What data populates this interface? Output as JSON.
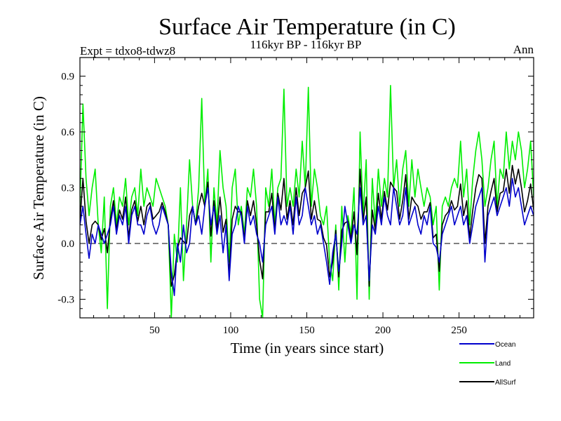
{
  "chart_data": {
    "type": "line",
    "title": "Surface Air Temperature (in C)",
    "subtitle": "116kyr BP - 116kyr BP",
    "left_header": "Expt = tdxo8-tdwz8",
    "right_header": "Ann",
    "xlabel": "Time (in years since start)",
    "ylabel": "Surface Air Temperature (in C)",
    "xlim": [
      1,
      299
    ],
    "ylim": [
      -0.4,
      1.0
    ],
    "xticks": [
      50,
      100,
      150,
      200,
      250
    ],
    "xtick_labels": [
      "50",
      "100",
      "150",
      "200",
      "250"
    ],
    "yticks": [
      -0.3,
      0.0,
      0.3,
      0.6,
      0.9
    ],
    "ytick_labels": [
      "-0.3",
      "0.0",
      "0.3",
      "0.6",
      "0.9"
    ],
    "zero_line": "dashed",
    "legend_position": "bottom-right, outside plot",
    "series": [
      {
        "name": "Land",
        "color": "#00ee00",
        "x": [
          1,
          3,
          5,
          7,
          9,
          11,
          13,
          15,
          17,
          19,
          21,
          23,
          25,
          27,
          29,
          31,
          33,
          35,
          37,
          39,
          41,
          43,
          45,
          47,
          49,
          51,
          53,
          55,
          57,
          59,
          61,
          63,
          65,
          67,
          69,
          71,
          73,
          75,
          77,
          79,
          81,
          83,
          85,
          87,
          89,
          91,
          93,
          95,
          97,
          99,
          101,
          103,
          105,
          107,
          109,
          111,
          113,
          115,
          117,
          119,
          121,
          123,
          125,
          127,
          129,
          131,
          133,
          135,
          137,
          139,
          141,
          143,
          145,
          147,
          149,
          151,
          153,
          155,
          157,
          159,
          161,
          163,
          165,
          167,
          169,
          171,
          173,
          175,
          177,
          179,
          181,
          183,
          185,
          187,
          189,
          191,
          193,
          195,
          197,
          199,
          201,
          203,
          205,
          207,
          209,
          211,
          213,
          215,
          217,
          219,
          221,
          223,
          225,
          227,
          229,
          231,
          233,
          235,
          237,
          239,
          241,
          243,
          245,
          247,
          249,
          251,
          253,
          255,
          257,
          259,
          261,
          263,
          265,
          267,
          269,
          271,
          273,
          275,
          277,
          279,
          281,
          283,
          285,
          287,
          289,
          291,
          293,
          295,
          297,
          299
        ],
        "values": [
          0.2,
          0.75,
          0.35,
          0.15,
          0.3,
          0.4,
          0.1,
          -0.05,
          0.25,
          -0.35,
          0.2,
          0.3,
          0.1,
          0.25,
          0.2,
          0.35,
          0.1,
          0.25,
          0.3,
          0.15,
          0.4,
          0.2,
          0.3,
          0.25,
          0.2,
          0.35,
          0.3,
          0.25,
          0.2,
          0.1,
          -0.4,
          0.05,
          -0.1,
          0.3,
          -0.2,
          0.1,
          0.45,
          0.2,
          0.1,
          0.3,
          0.78,
          0.2,
          0.4,
          -0.1,
          0.3,
          0.1,
          0.5,
          0.3,
          0.2,
          -0.1,
          0.3,
          0.4,
          0.1,
          0.2,
          0.05,
          0.3,
          0.25,
          0.4,
          0.2,
          -0.3,
          -0.4,
          0.3,
          0.2,
          0.4,
          0.1,
          0.3,
          0.35,
          0.83,
          0.2,
          0.3,
          0.2,
          0.4,
          0.25,
          0.55,
          0.3,
          0.84,
          0.2,
          0.4,
          0.3,
          0.15,
          0.1,
          0.2,
          -0.1,
          -0.2,
          0.1,
          -0.25,
          0.2,
          -0.1,
          0.15,
          0.05,
          0.3,
          -0.3,
          0.6,
          0.15,
          0.45,
          -0.3,
          0.35,
          0.1,
          0.4,
          0.2,
          0.35,
          0.25,
          0.85,
          0.3,
          0.45,
          0.2,
          0.4,
          0.5,
          0.2,
          0.45,
          0.25,
          0.4,
          0.3,
          0.2,
          0.3,
          0.25,
          0.1,
          0.2,
          -0.25,
          0.2,
          0.25,
          0.2,
          0.3,
          0.35,
          0.3,
          0.55,
          0.25,
          0.4,
          0.1,
          0.35,
          0.5,
          0.6,
          0.45,
          0.2,
          0.3,
          0.45,
          0.55,
          0.2,
          0.4,
          0.35,
          0.6,
          0.4,
          0.55,
          0.45,
          0.6,
          0.5,
          0.3,
          0.4,
          0.55,
          0.25
        ]
      },
      {
        "name": "Ocean",
        "color": "#0000cc",
        "x": [
          1,
          3,
          5,
          7,
          9,
          11,
          13,
          15,
          17,
          19,
          21,
          23,
          25,
          27,
          29,
          31,
          33,
          35,
          37,
          39,
          41,
          43,
          45,
          47,
          49,
          51,
          53,
          55,
          57,
          59,
          61,
          63,
          65,
          67,
          69,
          71,
          73,
          75,
          77,
          79,
          81,
          83,
          85,
          87,
          89,
          91,
          93,
          95,
          97,
          99,
          101,
          103,
          105,
          107,
          109,
          111,
          113,
          115,
          117,
          119,
          121,
          123,
          125,
          127,
          129,
          131,
          133,
          135,
          137,
          139,
          141,
          143,
          145,
          147,
          149,
          151,
          153,
          155,
          157,
          159,
          161,
          163,
          165,
          167,
          169,
          171,
          173,
          175,
          177,
          179,
          181,
          183,
          185,
          187,
          189,
          191,
          193,
          195,
          197,
          199,
          201,
          203,
          205,
          207,
          209,
          211,
          213,
          215,
          217,
          219,
          221,
          223,
          225,
          227,
          229,
          231,
          233,
          235,
          237,
          239,
          241,
          243,
          245,
          247,
          249,
          251,
          253,
          255,
          257,
          259,
          261,
          263,
          265,
          267,
          269,
          271,
          273,
          275,
          277,
          279,
          281,
          283,
          285,
          287,
          289,
          291,
          293,
          295,
          297,
          299
        ],
        "values": [
          0.1,
          0.2,
          0.05,
          -0.08,
          0.05,
          0.0,
          0.1,
          0.05,
          0.0,
          0.05,
          0.1,
          0.2,
          0.05,
          0.15,
          0.1,
          0.2,
          0.0,
          0.15,
          0.2,
          0.1,
          0.1,
          0.05,
          0.15,
          0.2,
          0.1,
          0.05,
          0.1,
          0.2,
          0.15,
          0.1,
          -0.15,
          -0.28,
          0.0,
          -0.1,
          0.1,
          -0.05,
          0.0,
          0.2,
          0.1,
          0.15,
          0.05,
          0.2,
          0.3,
          0.1,
          0.2,
          0.05,
          0.15,
          -0.05,
          0.1,
          -0.2,
          0.05,
          0.1,
          0.2,
          0.15,
          0.0,
          0.2,
          0.1,
          0.15,
          0.05,
          0.0,
          -0.1,
          0.1,
          0.15,
          0.2,
          0.05,
          0.25,
          0.1,
          0.15,
          0.1,
          0.2,
          0.05,
          0.25,
          0.1,
          0.15,
          0.3,
          0.2,
          0.1,
          0.15,
          0.05,
          0.1,
          0.0,
          -0.1,
          -0.22,
          -0.05,
          0.05,
          -0.15,
          0.0,
          0.2,
          0.1,
          0.0,
          0.1,
          0.05,
          0.3,
          0.1,
          0.15,
          -0.2,
          0.1,
          0.05,
          0.2,
          0.1,
          0.25,
          0.15,
          0.1,
          0.3,
          0.2,
          0.1,
          0.15,
          0.3,
          0.1,
          0.15,
          0.2,
          0.1,
          0.05,
          0.15,
          0.1,
          0.2,
          0.0,
          -0.02,
          -0.1,
          0.05,
          0.1,
          0.15,
          0.2,
          0.1,
          0.15,
          0.2,
          0.1,
          0.15,
          0.0,
          0.1,
          0.2,
          0.25,
          0.3,
          -0.1,
          0.15,
          0.2,
          0.25,
          0.15,
          0.2,
          0.25,
          0.3,
          0.2,
          0.35,
          0.25,
          0.3,
          0.2,
          0.1,
          0.15,
          0.2,
          0.15
        ]
      },
      {
        "name": "AllSurf",
        "color": "#000000",
        "x": [
          1,
          3,
          5,
          7,
          9,
          11,
          13,
          15,
          17,
          19,
          21,
          23,
          25,
          27,
          29,
          31,
          33,
          35,
          37,
          39,
          41,
          43,
          45,
          47,
          49,
          51,
          53,
          55,
          57,
          59,
          61,
          63,
          65,
          67,
          69,
          71,
          73,
          75,
          77,
          79,
          81,
          83,
          85,
          87,
          89,
          91,
          93,
          95,
          97,
          99,
          101,
          103,
          105,
          107,
          109,
          111,
          113,
          115,
          117,
          119,
          121,
          123,
          125,
          127,
          129,
          131,
          133,
          135,
          137,
          139,
          141,
          143,
          145,
          147,
          149,
          151,
          153,
          155,
          157,
          159,
          161,
          163,
          165,
          167,
          169,
          171,
          173,
          175,
          177,
          179,
          181,
          183,
          185,
          187,
          189,
          191,
          193,
          195,
          197,
          199,
          201,
          203,
          205,
          207,
          209,
          211,
          213,
          215,
          217,
          219,
          221,
          223,
          225,
          227,
          229,
          231,
          233,
          235,
          237,
          239,
          241,
          243,
          245,
          247,
          249,
          251,
          253,
          255,
          257,
          259,
          261,
          263,
          265,
          267,
          269,
          271,
          273,
          275,
          277,
          279,
          281,
          283,
          285,
          287,
          289,
          291,
          293,
          295,
          297,
          299
        ],
        "values": [
          0.12,
          0.35,
          0.12,
          0.0,
          0.1,
          0.12,
          0.1,
          0.02,
          0.08,
          -0.05,
          0.13,
          0.23,
          0.07,
          0.18,
          0.13,
          0.25,
          0.03,
          0.18,
          0.23,
          0.12,
          0.2,
          0.1,
          0.2,
          0.22,
          0.13,
          0.15,
          0.17,
          0.22,
          0.17,
          0.1,
          -0.23,
          -0.17,
          -0.03,
          0.03,
          0.01,
          0.0,
          0.15,
          0.2,
          0.1,
          0.2,
          0.27,
          0.2,
          0.33,
          0.04,
          0.23,
          0.07,
          0.25,
          0.06,
          0.13,
          -0.17,
          0.13,
          0.2,
          0.17,
          0.17,
          0.02,
          0.23,
          0.15,
          0.23,
          0.1,
          -0.09,
          -0.19,
          0.17,
          0.17,
          0.27,
          0.07,
          0.27,
          0.18,
          0.35,
          0.13,
          0.23,
          0.1,
          0.3,
          0.15,
          0.27,
          0.3,
          0.39,
          0.13,
          0.23,
          0.13,
          0.12,
          0.03,
          -0.01,
          -0.18,
          -0.1,
          0.07,
          -0.18,
          0.07,
          0.11,
          0.12,
          0.02,
          0.17,
          -0.06,
          0.4,
          0.12,
          0.25,
          -0.23,
          0.18,
          0.07,
          0.27,
          0.13,
          0.28,
          0.18,
          0.33,
          0.3,
          0.28,
          0.13,
          0.23,
          0.37,
          0.13,
          0.25,
          0.22,
          0.2,
          0.13,
          0.17,
          0.17,
          0.22,
          0.03,
          0.05,
          -0.15,
          0.1,
          0.15,
          0.17,
          0.23,
          0.18,
          0.2,
          0.32,
          0.15,
          0.23,
          0.03,
          0.18,
          0.3,
          0.37,
          0.35,
          0.0,
          0.2,
          0.28,
          0.35,
          0.17,
          0.27,
          0.28,
          0.4,
          0.27,
          0.42,
          0.32,
          0.4,
          0.3,
          0.17,
          0.23,
          0.32,
          0.18
        ]
      }
    ]
  }
}
